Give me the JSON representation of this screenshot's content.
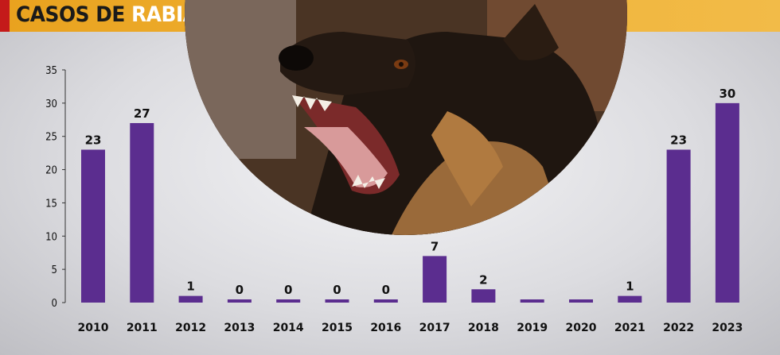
{
  "header": {
    "title_part1": "CASOS DE ",
    "title_part2": "RABIA CANINA EN SUCRE",
    "colors": {
      "bar": "#5b2d8f",
      "header": "#efae2f",
      "accent": "#c41a1a"
    }
  },
  "photo": {
    "subject": "dog-photo"
  },
  "chart_data": {
    "type": "bar",
    "title": "CASOS DE RABIA CANINA EN SUCRE",
    "categories": [
      "2010",
      "2011",
      "2012",
      "2013",
      "2014",
      "2015",
      "2016",
      "2017",
      "2018",
      "2019",
      "2020",
      "2021",
      "2022",
      "2023"
    ],
    "values": [
      23,
      27,
      1,
      0,
      0,
      0,
      0,
      7,
      2,
      0,
      0,
      1,
      23,
      30
    ],
    "value_labels": [
      "23",
      "27",
      "1",
      "0",
      "0",
      "0",
      "0",
      "7",
      "2",
      "",
      "",
      "1",
      "23",
      "30"
    ],
    "yticks": [
      "0",
      "5",
      "10",
      "15",
      "20",
      "25",
      "30",
      "35"
    ],
    "ylim": [
      0,
      35
    ],
    "grid": false,
    "xlabel": "",
    "ylabel": ""
  }
}
